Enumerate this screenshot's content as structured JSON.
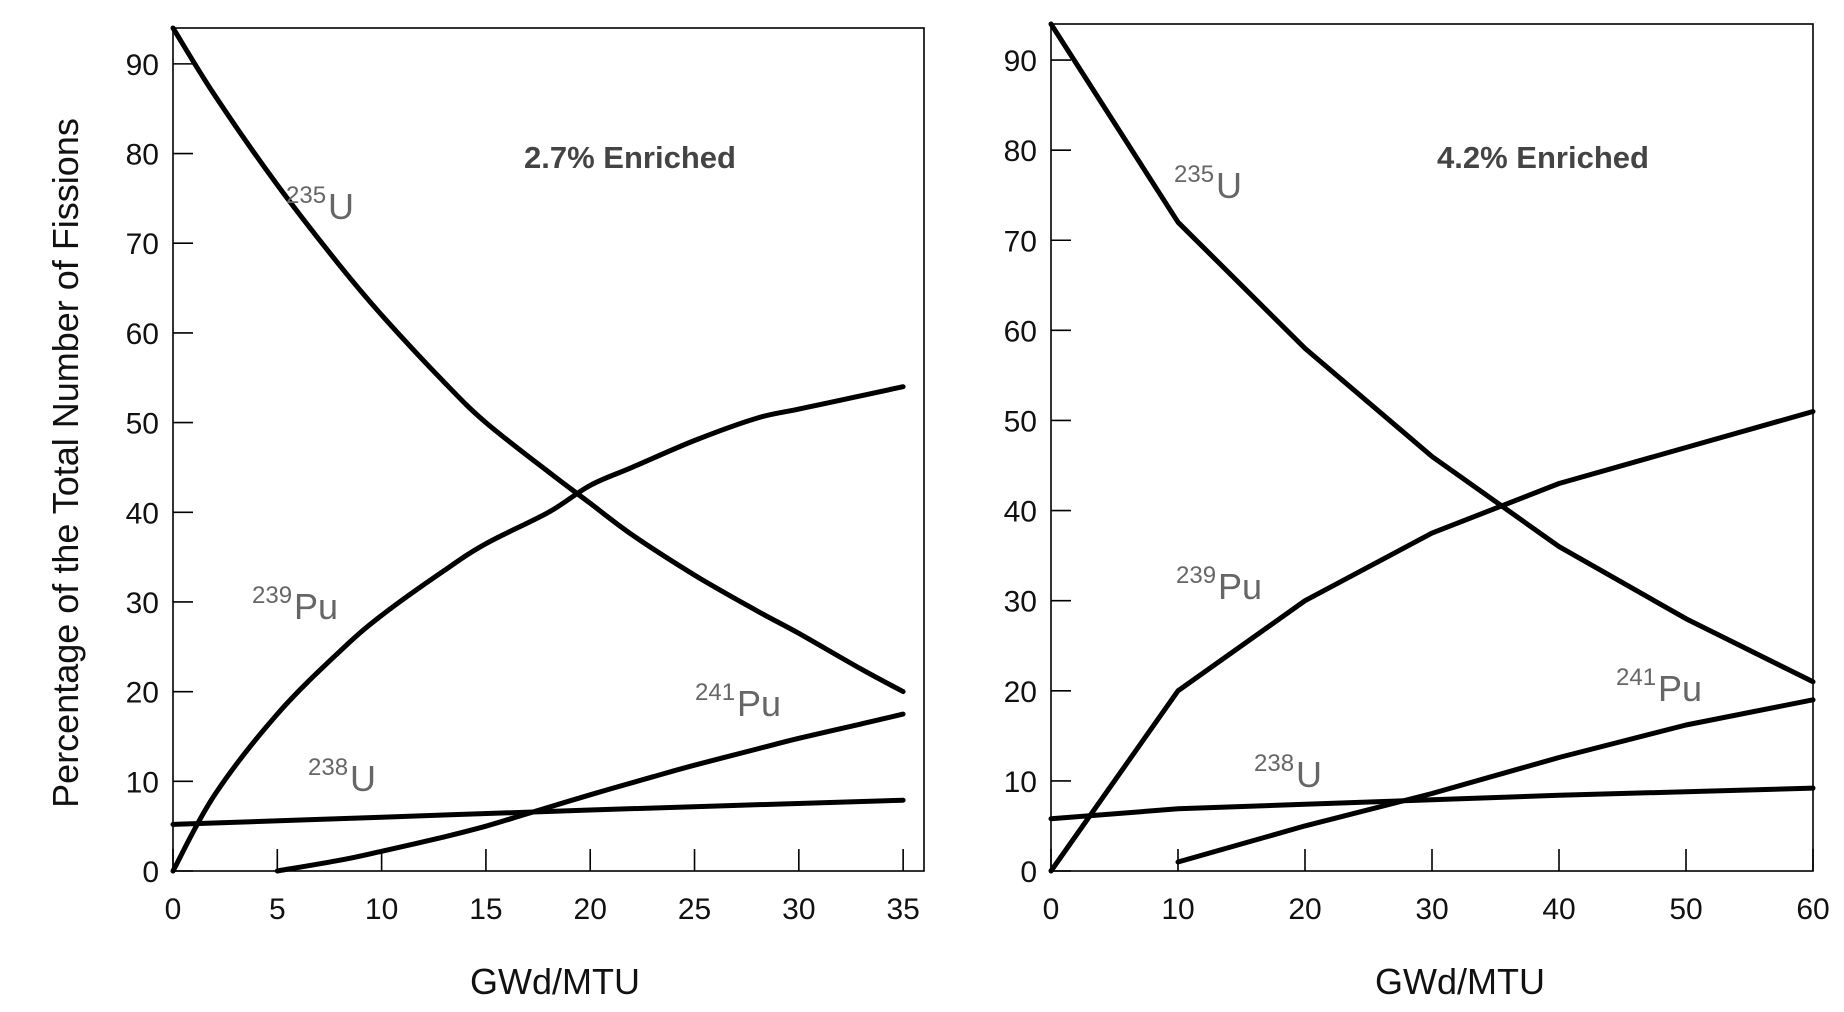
{
  "y_axis_label": "Percentage of the Total Number of Fissions",
  "chart_data": [
    {
      "type": "line",
      "title": "2.7% Enriched",
      "xlabel": "GWd/MTU",
      "ylabel": "Percentage of the Total Number of Fissions",
      "xlim": [
        0,
        36
      ],
      "ylim": [
        0,
        94
      ],
      "x_ticks": [
        0,
        5,
        10,
        15,
        20,
        25,
        30,
        35
      ],
      "y_ticks": [
        0,
        10,
        20,
        30,
        40,
        50,
        60,
        70,
        80,
        90
      ],
      "grid": false,
      "series": [
        {
          "name": "235U",
          "sup": "235",
          "element": "U",
          "x": [
            0,
            2,
            5,
            8,
            10,
            13,
            15,
            18,
            20,
            22,
            25,
            28,
            30,
            33,
            35
          ],
          "y": [
            94,
            86.5,
            76.5,
            67.5,
            62,
            54.5,
            50,
            44.5,
            41,
            37.5,
            33,
            29,
            26.5,
            22.5,
            20
          ]
        },
        {
          "name": "239Pu",
          "sup": "239",
          "element": "Pu",
          "x": [
            0,
            2,
            5,
            8,
            10,
            13,
            15,
            18,
            20,
            22,
            25,
            28,
            30,
            33,
            35
          ],
          "y": [
            0,
            8.5,
            17.5,
            24.5,
            28.5,
            33.5,
            36.5,
            40,
            43,
            45,
            48,
            50.5,
            51.5,
            53,
            54
          ]
        },
        {
          "name": "238U",
          "sup": "238",
          "element": "U",
          "x": [
            0,
            10,
            20,
            35
          ],
          "y": [
            5.2,
            6,
            6.8,
            7.9
          ]
        },
        {
          "name": "241Pu",
          "sup": "241",
          "element": "Pu",
          "x": [
            5,
            8,
            10,
            13,
            15,
            17,
            20,
            23,
            25,
            28,
            30,
            33,
            35
          ],
          "y": [
            0,
            1.2,
            2.2,
            3.8,
            5,
            6.4,
            8.5,
            10.5,
            11.8,
            13.6,
            14.8,
            16.4,
            17.5
          ]
        }
      ]
    },
    {
      "type": "line",
      "title": "4.2% Enriched",
      "xlabel": "GWd/MTU",
      "ylabel": "",
      "xlim": [
        0,
        60
      ],
      "ylim": [
        0,
        94
      ],
      "x_ticks": [
        0,
        10,
        20,
        30,
        40,
        50,
        60
      ],
      "y_ticks": [
        0,
        10,
        20,
        30,
        40,
        50,
        60,
        70,
        80,
        90
      ],
      "grid": false,
      "series": [
        {
          "name": "235U",
          "sup": "235",
          "element": "U",
          "x": [
            0,
            10,
            20,
            30,
            40,
            50,
            60
          ],
          "y": [
            94,
            72,
            58,
            46,
            36,
            28,
            21
          ]
        },
        {
          "name": "239Pu",
          "sup": "239",
          "element": "Pu",
          "x": [
            0,
            10,
            20,
            30,
            40,
            50,
            60
          ],
          "y": [
            0,
            20,
            30,
            37.5,
            43,
            47,
            51
          ]
        },
        {
          "name": "238U",
          "sup": "238",
          "element": "U",
          "x": [
            0,
            10,
            20,
            30,
            40,
            50,
            60
          ],
          "y": [
            5.8,
            6.9,
            7.4,
            7.9,
            8.4,
            8.8,
            9.2
          ]
        },
        {
          "name": "241Pu",
          "sup": "241",
          "element": "Pu",
          "x": [
            10,
            20,
            30,
            40,
            50,
            60
          ],
          "y": [
            1,
            5,
            8.6,
            12.6,
            16.2,
            19
          ]
        }
      ]
    }
  ]
}
